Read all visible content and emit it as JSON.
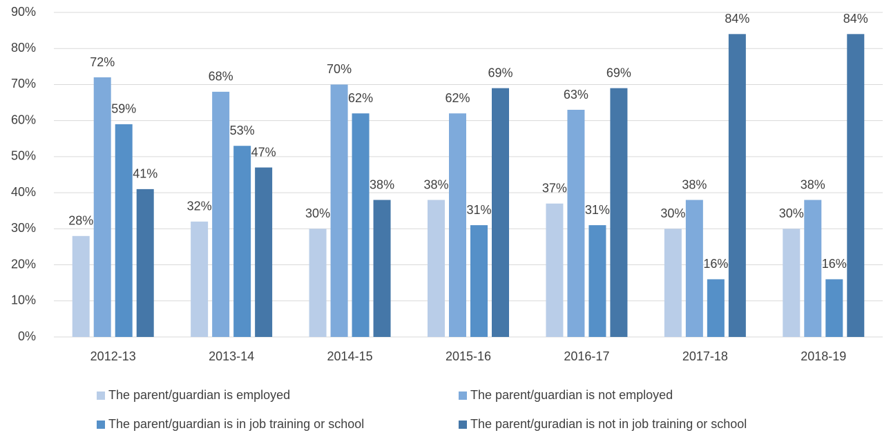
{
  "chart_data": {
    "type": "bar",
    "categories": [
      "2012-13",
      "2013-14",
      "2014-15",
      "2015-16",
      "2016-17",
      "2017-18",
      "2018-19"
    ],
    "series": [
      {
        "name": "The parent/guardian is employed",
        "color": "#b9cde8",
        "values": [
          28,
          32,
          30,
          38,
          37,
          30,
          30
        ],
        "value_labels": [
          "28%",
          "32%",
          "30%",
          "38%",
          "37%",
          "30%",
          "30%"
        ]
      },
      {
        "name": "The parent/guardian is not employed",
        "color": "#7eaadb",
        "values": [
          72,
          68,
          70,
          62,
          63,
          38,
          38
        ],
        "value_labels": [
          "72%",
          "68%",
          "70%",
          "62%",
          "63%",
          "38%",
          "38%"
        ]
      },
      {
        "name": "The parent/guardian is in job training or school",
        "color": "#5590c8",
        "values": [
          59,
          53,
          62,
          31,
          31,
          16,
          16
        ],
        "value_labels": [
          "59%",
          "53%",
          "62%",
          "31%",
          "31%",
          "16%",
          "16%"
        ]
      },
      {
        "name": "The parent/guradian is not in job training or school",
        "color": "#4577a8",
        "values": [
          41,
          47,
          38,
          69,
          69,
          84,
          84
        ],
        "value_labels": [
          "41%",
          "47%",
          "38%",
          "69%",
          "69%",
          "84%",
          "84%"
        ]
      }
    ],
    "ylim": [
      0,
      90
    ],
    "yticks": [
      {
        "value": 0,
        "label": "0%"
      },
      {
        "value": 10,
        "label": "10%"
      },
      {
        "value": 20,
        "label": "20%"
      },
      {
        "value": 30,
        "label": "30%"
      },
      {
        "value": 40,
        "label": "40%"
      },
      {
        "value": 50,
        "label": "50%"
      },
      {
        "value": 60,
        "label": "60%"
      },
      {
        "value": 70,
        "label": "70%"
      },
      {
        "value": 80,
        "label": "80%"
      },
      {
        "value": 90,
        "label": "90%"
      }
    ],
    "grid": true,
    "legend": "bottom"
  }
}
